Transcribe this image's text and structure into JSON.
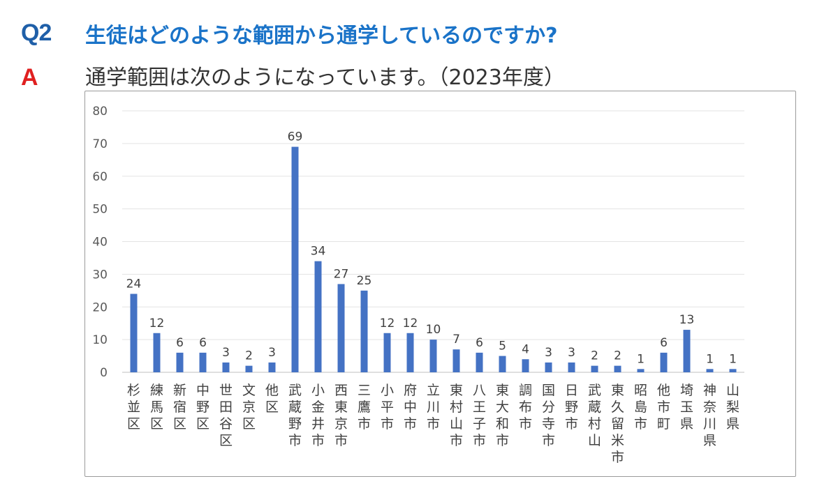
{
  "question": {
    "label": "Q2",
    "text": "生徒はどのような範囲から通学しているのですか?"
  },
  "answer": {
    "label": "A",
    "text": "通学範囲は次のようになっています。（2023年度）"
  },
  "colors": {
    "question": "#1a73c8",
    "answer_label": "#e02020",
    "bar": "#4472c4"
  },
  "chart_data": {
    "type": "bar",
    "categories": [
      "杉並区",
      "練馬区",
      "新宿区",
      "中野区",
      "世田谷区",
      "文京区",
      "他区",
      "武蔵野市",
      "小金井市",
      "西東京市",
      "三鷹市",
      "小平市",
      "府中市",
      "立川市",
      "東村山市",
      "八王子市",
      "東大和市",
      "調布市",
      "国分寺市",
      "日野市",
      "武蔵村山",
      "東久留米市",
      "昭島市",
      "他市町",
      "埼玉県",
      "神奈川県",
      "山梨県"
    ],
    "values": [
      24,
      12,
      6,
      6,
      3,
      2,
      3,
      69,
      34,
      27,
      25,
      12,
      12,
      10,
      7,
      6,
      5,
      4,
      3,
      3,
      2,
      2,
      1,
      6,
      13,
      1,
      1
    ],
    "yticks": [
      0,
      10,
      20,
      30,
      40,
      50,
      60,
      70,
      80
    ],
    "ylim": [
      0,
      80
    ],
    "grid": true,
    "data_labels": true,
    "legend": "none"
  }
}
